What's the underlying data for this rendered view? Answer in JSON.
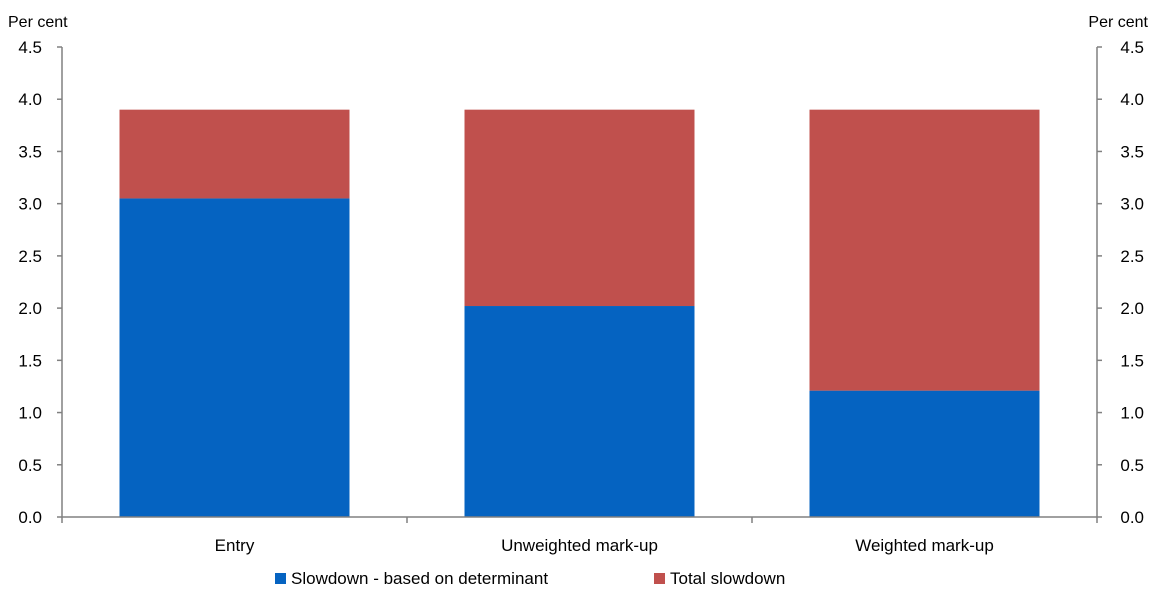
{
  "chart_data": {
    "type": "bar",
    "stacked": true,
    "title": "",
    "xlabel": "",
    "ylabel": "",
    "y_unit_left": "Per cent",
    "y_unit_right": "Per cent",
    "categories": [
      "Entry",
      "Unweighted mark-up",
      "Weighted mark-up"
    ],
    "series": [
      {
        "name": "Slowdown - based on determinant",
        "values": [
          3.05,
          2.02,
          1.21
        ],
        "color": "#0563c1"
      },
      {
        "name": "Total slowdown",
        "values": [
          0.85,
          1.88,
          2.69
        ],
        "color": "#c0504d"
      }
    ],
    "totals": [
      3.9,
      3.9,
      3.9
    ],
    "ylim": [
      0,
      4.5
    ],
    "yticks": [
      "0.0",
      "0.5",
      "1.0",
      "1.5",
      "2.0",
      "2.5",
      "3.0",
      "3.5",
      "4.0",
      "4.5"
    ],
    "ytick_values": [
      0,
      0.5,
      1.0,
      1.5,
      2.0,
      2.5,
      3.0,
      3.5,
      4.0,
      4.5
    ],
    "grid": false,
    "legend_position": "bottom",
    "axis_color": "#808080"
  }
}
